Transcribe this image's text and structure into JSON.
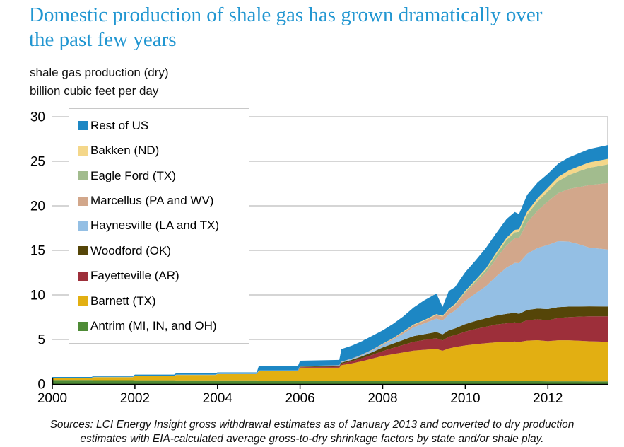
{
  "title": {
    "line1": "Domestic production of shale gas has grown dramatically over",
    "line2": "the past few years",
    "full": "Domestic production of shale gas has grown dramatically over the past few years"
  },
  "units_label": {
    "line1": "shale gas production (dry)",
    "line2": "billion cubic feet per day"
  },
  "source_note": {
    "line1": "Sources:  LCI Energy Insight gross withdrawal estimates as of January 2013 and converted to dry production",
    "line2": "estimates with EIA-calculated average gross-to-dry shrinkage factors by state and/or shale play."
  },
  "colors": {
    "title_blue": "#2196d1",
    "axis": "#000000",
    "gridline": "#ababab",
    "right_spine": "#ababab",
    "legend_border": "#c8c8c8",
    "tick_label": "#000000"
  },
  "chart_data": {
    "type": "area",
    "stacked": true,
    "stack_order": "last series in list is bottom of stack",
    "title": "shale gas production (dry), billion cubic feet per day",
    "xlabel": "",
    "ylabel": "billion cubic feet per day",
    "xlim": [
      2000,
      2013.45
    ],
    "ylim": [
      0,
      30
    ],
    "grid": "horizontal",
    "legend_position": "upper-left",
    "x_ticks": [
      2000,
      2002,
      2004,
      2006,
      2008,
      2010,
      2012
    ],
    "y_ticks": [
      0,
      5,
      10,
      15,
      20,
      25,
      30
    ],
    "x": [
      2000.0,
      2000.95,
      2001.0,
      2001.95,
      2002.0,
      2002.95,
      2003.0,
      2003.95,
      2004.0,
      2004.95,
      2005.0,
      2005.95,
      2006.0,
      2006.95,
      2007.0,
      2007.25,
      2007.5,
      2007.75,
      2008.0,
      2008.25,
      2008.5,
      2008.75,
      2009.0,
      2009.3,
      2009.45,
      2009.6,
      2009.75,
      2010.0,
      2010.25,
      2010.5,
      2010.75,
      2011.0,
      2011.2,
      2011.3,
      2011.5,
      2011.75,
      2012.0,
      2012.25,
      2012.5,
      2012.75,
      2013.0,
      2013.45
    ],
    "series": [
      {
        "name": "Rest of US",
        "color": "#1d87c4",
        "values": [
          0.08,
          0.08,
          0.09,
          0.09,
          0.12,
          0.12,
          0.15,
          0.15,
          0.15,
          0.15,
          0.5,
          0.5,
          0.6,
          0.6,
          1.4,
          1.45,
          1.5,
          1.55,
          1.5,
          1.6,
          1.7,
          1.9,
          2.2,
          2.3,
          1.0,
          2.0,
          1.9,
          2.1,
          2.2,
          2.3,
          2.2,
          2.1,
          2.0,
          1.7,
          1.9,
          1.75,
          1.55,
          1.5,
          1.45,
          1.45,
          1.5,
          1.55
        ]
      },
      {
        "name": "Bakken (ND)",
        "color": "#f4d78a",
        "values": [
          0,
          0,
          0,
          0,
          0,
          0,
          0,
          0,
          0,
          0,
          0,
          0,
          0,
          0,
          0,
          0,
          0.01,
          0.02,
          0.04,
          0.05,
          0.06,
          0.07,
          0.08,
          0.09,
          0.09,
          0.1,
          0.11,
          0.13,
          0.15,
          0.18,
          0.21,
          0.25,
          0.27,
          0.28,
          0.32,
          0.37,
          0.42,
          0.47,
          0.52,
          0.56,
          0.6,
          0.62
        ]
      },
      {
        "name": "Eagle Ford (TX)",
        "color": "#a2bc8e",
        "values": [
          0,
          0,
          0,
          0,
          0,
          0,
          0,
          0,
          0,
          0,
          0,
          0,
          0,
          0,
          0,
          0,
          0,
          0,
          0,
          0,
          0,
          0,
          0,
          0,
          0,
          0,
          0.03,
          0.1,
          0.2,
          0.32,
          0.45,
          0.6,
          0.68,
          0.72,
          0.9,
          1.02,
          1.12,
          1.35,
          1.55,
          1.78,
          1.95,
          2.1
        ]
      },
      {
        "name": "Marcellus (PA and WV)",
        "color": "#d2a78b",
        "values": [
          0,
          0,
          0,
          0,
          0,
          0,
          0,
          0,
          0,
          0,
          0,
          0,
          0.01,
          0.02,
          0.03,
          0.04,
          0.05,
          0.06,
          0.08,
          0.12,
          0.18,
          0.25,
          0.3,
          0.42,
          0.45,
          0.52,
          0.6,
          0.9,
          1.15,
          1.5,
          2.0,
          2.5,
          2.75,
          2.8,
          3.5,
          4.2,
          4.9,
          5.4,
          5.9,
          6.4,
          7.0,
          7.45
        ]
      },
      {
        "name": "Haynesville (LA and TX)",
        "color": "#94bfe4",
        "values": [
          0.04,
          0.04,
          0.04,
          0.04,
          0.04,
          0.04,
          0.04,
          0.04,
          0.05,
          0.05,
          0.05,
          0.05,
          0.06,
          0.06,
          0.08,
          0.1,
          0.14,
          0.2,
          0.3,
          0.45,
          0.7,
          1.0,
          1.2,
          1.5,
          1.55,
          1.8,
          2.0,
          2.6,
          3.1,
          3.6,
          4.4,
          5.2,
          5.6,
          5.7,
          6.3,
          6.8,
          7.2,
          7.4,
          7.3,
          7.0,
          6.6,
          6.4
        ]
      },
      {
        "name": "Woodford (OK)",
        "color": "#554508",
        "values": [
          0,
          0,
          0,
          0,
          0,
          0,
          0,
          0,
          0,
          0,
          0.01,
          0.02,
          0.05,
          0.08,
          0.12,
          0.16,
          0.22,
          0.3,
          0.4,
          0.48,
          0.55,
          0.62,
          0.65,
          0.7,
          0.68,
          0.73,
          0.75,
          0.85,
          0.9,
          0.95,
          1.0,
          1.05,
          1.08,
          1.05,
          1.15,
          1.2,
          1.25,
          1.22,
          1.18,
          1.14,
          1.12,
          1.1
        ]
      },
      {
        "name": "Fayetteville (AR)",
        "color": "#9d2f3a",
        "values": [
          0,
          0,
          0,
          0,
          0,
          0,
          0,
          0,
          0,
          0,
          0.01,
          0.02,
          0.07,
          0.12,
          0.18,
          0.25,
          0.33,
          0.42,
          0.55,
          0.7,
          0.85,
          1.0,
          1.1,
          1.2,
          1.15,
          1.3,
          1.35,
          1.55,
          1.7,
          1.85,
          2.0,
          2.1,
          2.15,
          2.1,
          2.3,
          2.35,
          2.35,
          2.5,
          2.6,
          2.7,
          2.8,
          2.85
        ]
      },
      {
        "name": "Barnett (TX)",
        "color": "#e2af12",
        "values": [
          0.22,
          0.22,
          0.33,
          0.33,
          0.47,
          0.47,
          0.6,
          0.6,
          0.7,
          0.7,
          1.05,
          1.05,
          1.45,
          1.45,
          1.75,
          1.95,
          2.2,
          2.5,
          2.8,
          3.0,
          3.2,
          3.4,
          3.5,
          3.6,
          3.4,
          3.65,
          3.8,
          4.0,
          4.15,
          4.25,
          4.35,
          4.4,
          4.45,
          4.4,
          4.55,
          4.6,
          4.5,
          4.6,
          4.6,
          4.55,
          4.5,
          4.45
        ]
      },
      {
        "name": "Antrim (MI, IN, and OH)",
        "color": "#4e8b36",
        "values": [
          0.45,
          0.45,
          0.44,
          0.44,
          0.43,
          0.43,
          0.42,
          0.42,
          0.41,
          0.41,
          0.4,
          0.4,
          0.38,
          0.38,
          0.36,
          0.36,
          0.36,
          0.36,
          0.35,
          0.35,
          0.35,
          0.35,
          0.34,
          0.34,
          0.34,
          0.34,
          0.34,
          0.33,
          0.33,
          0.33,
          0.33,
          0.32,
          0.32,
          0.32,
          0.32,
          0.32,
          0.31,
          0.31,
          0.31,
          0.31,
          0.3,
          0.3
        ]
      }
    ]
  }
}
